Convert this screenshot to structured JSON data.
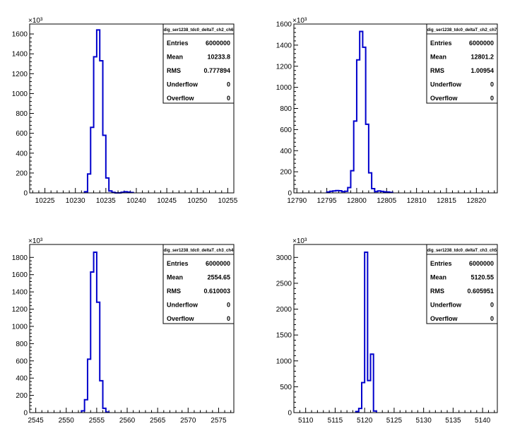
{
  "chart_data": [
    {
      "type": "bar",
      "title": "",
      "xlabel": "",
      "ylabel": "",
      "exponent_label": "×10³",
      "xlim": [
        10222.5,
        10256
      ],
      "ylim": [
        0,
        1700
      ],
      "xticks": [
        10225,
        10230,
        10235,
        10240,
        10245,
        10250,
        10255
      ],
      "yticks": [
        0,
        200,
        400,
        600,
        800,
        1000,
        1200,
        1400,
        1600
      ],
      "bin_width": 0.5,
      "x": [
        10231.5,
        10232.0,
        10232.5,
        10233.0,
        10233.5,
        10234.0,
        10234.5,
        10235.0,
        10235.5,
        10236.0,
        10237.5,
        10238.0,
        10238.5,
        10239.0
      ],
      "values": [
        12,
        190,
        660,
        1370,
        1640,
        1330,
        580,
        150,
        20,
        5,
        6,
        12,
        8,
        4
      ],
      "stats": {
        "name": "dig_ser1238_tdc0_deltaT_ch2_ch6",
        "rows": [
          {
            "label": "Entries",
            "value": "6000000"
          },
          {
            "label": "Mean",
            "value": "10233.8"
          },
          {
            "label": "RMS",
            "value": "0.777894"
          },
          {
            "label": "Underflow",
            "value": "0"
          },
          {
            "label": "Overflow",
            "value": "0"
          }
        ]
      }
    },
    {
      "type": "bar",
      "title": "",
      "xlabel": "",
      "ylabel": "",
      "exponent_label": "×10³",
      "xlim": [
        12789.5,
        12823.5
      ],
      "ylim": [
        0,
        1600
      ],
      "xticks": [
        12790,
        12795,
        12800,
        12805,
        12810,
        12815,
        12820
      ],
      "yticks": [
        0,
        200,
        400,
        600,
        800,
        1000,
        1200,
        1400,
        1600
      ],
      "bin_width": 0.5,
      "x": [
        12795.0,
        12795.5,
        12796.0,
        12796.5,
        12797.0,
        12797.5,
        12798.0,
        12798.5,
        12799.0,
        12799.5,
        12800.0,
        12800.5,
        12801.0,
        12801.5,
        12802.0,
        12802.5,
        12803.0,
        12803.5,
        12804.0,
        12804.5,
        12805.0,
        12805.5
      ],
      "values": [
        8,
        15,
        18,
        22,
        20,
        12,
        15,
        50,
        210,
        680,
        1260,
        1530,
        1380,
        650,
        190,
        40,
        12,
        18,
        14,
        10,
        8,
        4
      ],
      "stats": {
        "name": "dig_ser1238_tdc0_deltaT_ch2_ch7",
        "rows": [
          {
            "label": "Entries",
            "value": "6000000"
          },
          {
            "label": "Mean",
            "value": "12801.2"
          },
          {
            "label": "RMS",
            "value": "1.00954"
          },
          {
            "label": "Underflow",
            "value": "0"
          },
          {
            "label": "Overflow",
            "value": "0"
          }
        ]
      }
    },
    {
      "type": "bar",
      "title": "",
      "xlabel": "",
      "ylabel": "",
      "exponent_label": "×10³",
      "xlim": [
        2544,
        2577.5
      ],
      "ylim": [
        0,
        1950
      ],
      "xticks": [
        2545,
        2550,
        2555,
        2560,
        2565,
        2570,
        2575
      ],
      "yticks": [
        0,
        200,
        400,
        600,
        800,
        1000,
        1200,
        1400,
        1600,
        1800
      ],
      "bin_width": 0.5,
      "x": [
        2552.5,
        2553.0,
        2553.5,
        2554.0,
        2554.5,
        2555.0,
        2555.5,
        2556.0,
        2556.5
      ],
      "values": [
        20,
        150,
        620,
        1630,
        1860,
        1280,
        370,
        50,
        6
      ],
      "stats": {
        "name": "dig_ser1238_tdc0_deltaT_ch3_ch4",
        "rows": [
          {
            "label": "Entries",
            "value": "6000000"
          },
          {
            "label": "Mean",
            "value": "2554.65"
          },
          {
            "label": "RMS",
            "value": "0.610003"
          },
          {
            "label": "Underflow",
            "value": "0"
          },
          {
            "label": "Overflow",
            "value": "0"
          }
        ]
      }
    },
    {
      "type": "bar",
      "title": "",
      "xlabel": "",
      "ylabel": "",
      "exponent_label": "×10³",
      "xlim": [
        5108,
        5142.5
      ],
      "ylim": [
        0,
        3250
      ],
      "xticks": [
        5110,
        5115,
        5120,
        5125,
        5130,
        5135,
        5140
      ],
      "yticks": [
        0,
        500,
        1000,
        1500,
        2000,
        2500,
        3000
      ],
      "bin_width": 0.5,
      "x": [
        5118.5,
        5119.0,
        5119.5,
        5120.0,
        5120.5,
        5121.0,
        5121.5
      ],
      "values": [
        20,
        80,
        580,
        3100,
        620,
        1130,
        30
      ],
      "stats": {
        "name": "dig_ser1238_tdc0_deltaT_ch3_ch5",
        "rows": [
          {
            "label": "Entries",
            "value": "6000000"
          },
          {
            "label": "Mean",
            "value": "5120.55"
          },
          {
            "label": "RMS",
            "value": "0.605951"
          },
          {
            "label": "Underflow",
            "value": "0"
          },
          {
            "label": "Overflow",
            "value": "0"
          }
        ]
      }
    }
  ]
}
